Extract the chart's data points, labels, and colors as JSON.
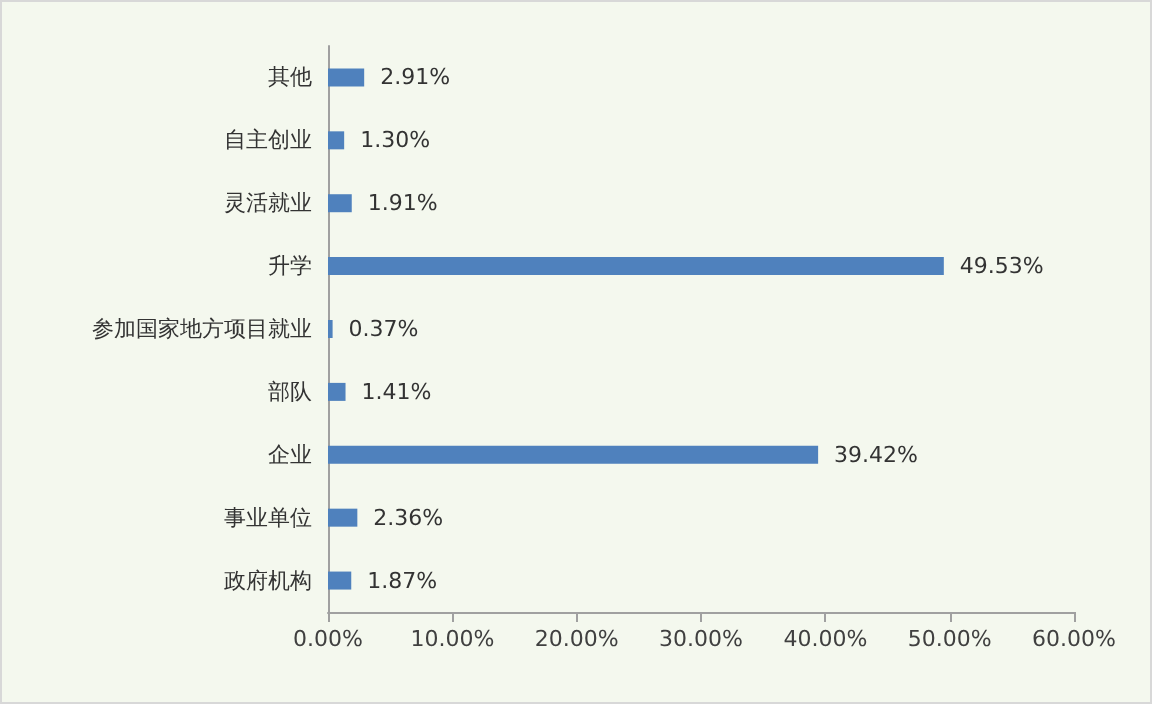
{
  "chart_data": {
    "type": "bar",
    "orientation": "horizontal",
    "categories": [
      "其他",
      "自主创业",
      "灵活就业",
      "升学",
      "参加国家地方项目就业",
      "部队",
      "企业",
      "事业单位",
      "政府机构"
    ],
    "values": [
      2.91,
      1.3,
      1.91,
      49.53,
      0.37,
      1.41,
      39.42,
      2.36,
      1.87
    ],
    "value_labels": [
      "2.91%",
      "1.30%",
      "1.91%",
      "49.53%",
      "0.37%",
      "1.41%",
      "39.42%",
      "2.36%",
      "1.87%"
    ],
    "color": "#4f81bd",
    "xlim": [
      0,
      60
    ],
    "xticks": [
      {
        "value": 0,
        "label": "0.00%"
      },
      {
        "value": 10,
        "label": "10.00%"
      },
      {
        "value": 20,
        "label": "20.00%"
      },
      {
        "value": 30,
        "label": "30.00%"
      },
      {
        "value": 40,
        "label": "40.00%"
      },
      {
        "value": 50,
        "label": "50.00%"
      },
      {
        "value": 60,
        "label": "60.00%"
      }
    ],
    "grid": false
  }
}
